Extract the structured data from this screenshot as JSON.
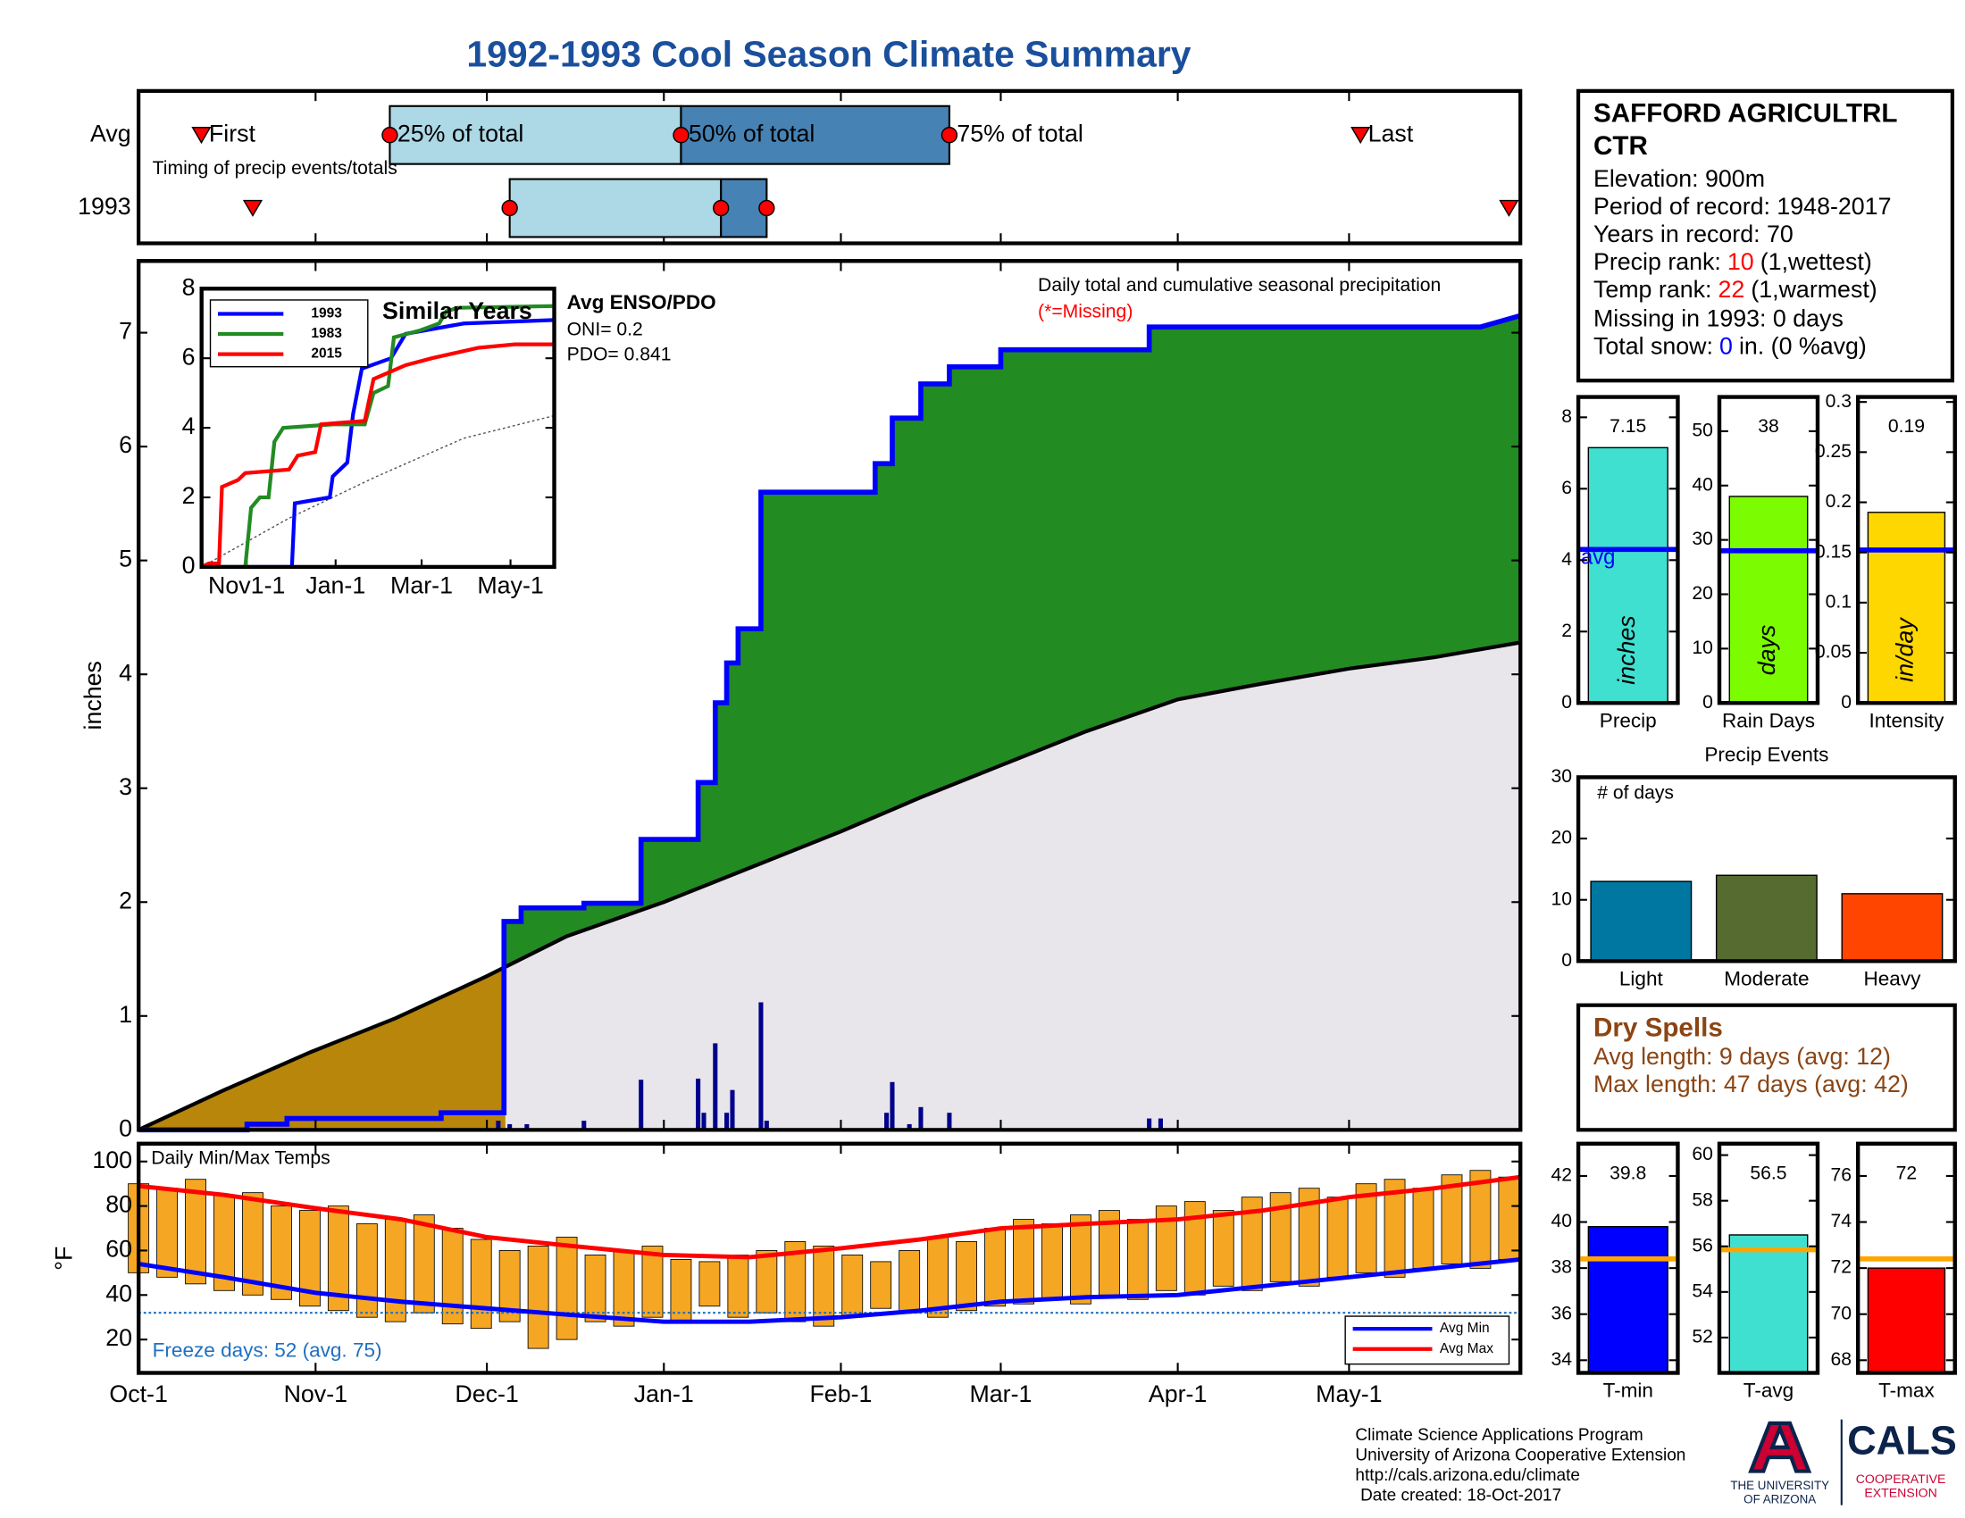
{
  "title": "1992-1993 Cool Season Climate Summary",
  "chart_data": [
    {
      "type": "timeline",
      "annotation": "Timing of precip events/totals",
      "markers": [
        "First",
        "25% of total",
        "50% of total",
        "75% of total",
        "Last"
      ],
      "series": [
        {
          "name": "Avg",
          "values": [
            11,
            44,
            95,
            142,
            214
          ]
        },
        {
          "name": "1993",
          "values": [
            20,
            65,
            102,
            110,
            240
          ]
        }
      ],
      "colors": [
        "#add8e6",
        "#4682b4"
      ],
      "marker_color": "#ff0000",
      "xlim": [
        0,
        242
      ]
    },
    {
      "type": "cumulative",
      "title": "Daily total and cumulative seasonal precipitation",
      "note": "(*=Missing)",
      "ylabel": "inches",
      "enso": {
        "title": "Avg ENSO/PDO",
        "oni": "ONI= 0.2",
        "pdo": "PDO= 0.841"
      },
      "xlim": [
        0,
        242
      ],
      "ylim": [
        0,
        7.63
      ],
      "yticks": [
        0,
        1,
        2,
        3,
        4,
        5,
        6,
        7
      ],
      "series": [
        {
          "color": "#0000ff",
          "x": [
            0,
            19,
            19,
            26,
            26,
            53,
            53,
            64,
            64,
            67,
            67,
            78,
            78,
            88,
            88,
            98,
            98,
            101,
            101,
            103,
            103,
            105,
            105,
            109,
            109,
            129,
            129,
            132,
            132,
            137,
            137,
            142,
            142,
            151,
            151,
            177,
            177,
            235,
            242
          ],
          "values": [
            0,
            0,
            0.05,
            0.05,
            0.1,
            0.1,
            0.15,
            0.15,
            1.83,
            1.83,
            1.95,
            1.95,
            1.99,
            1.99,
            2.55,
            2.55,
            3.05,
            3.05,
            3.75,
            3.75,
            4.1,
            4.1,
            4.4,
            4.4,
            5.6,
            5.6,
            5.85,
            5.85,
            6.25,
            6.25,
            6.55,
            6.55,
            6.7,
            6.7,
            6.85,
            6.85,
            7.05,
            7.05,
            7.15
          ]
        },
        {
          "color": "#000000",
          "x": [
            0,
            15,
            30,
            45,
            61,
            75,
            92,
            107,
            123,
            137,
            151,
            166,
            182,
            197,
            212,
            227,
            242
          ],
          "values": [
            0,
            0.35,
            0.68,
            0.98,
            1.35,
            1.7,
            2.0,
            2.3,
            2.62,
            2.92,
            3.2,
            3.5,
            3.78,
            3.92,
            4.05,
            4.15,
            4.28
          ]
        }
      ],
      "daily": {
        "color": "#00008b",
        "x": [
          63,
          65,
          68,
          78,
          88,
          98,
          99,
          101,
          103,
          104,
          109,
          110,
          131,
          132,
          135,
          137,
          142,
          177,
          179
        ],
        "values": [
          0.08,
          0.05,
          0.05,
          0.08,
          0.44,
          0.45,
          0.15,
          0.76,
          0.15,
          0.35,
          1.12,
          0.08,
          0.15,
          0.42,
          0.05,
          0.2,
          0.15,
          0.1,
          0.1
        ]
      },
      "fill_above": "#228b22",
      "fill_below": "#b8860b",
      "fill_base": "#e8e6ea"
    },
    {
      "type": "line",
      "title": "Similar Years",
      "xlim": [
        0,
        242
      ],
      "xticks": [
        {
          "value": 31,
          "label": "Nov1-1"
        },
        {
          "value": 92,
          "label": "Jan-1"
        },
        {
          "value": 151,
          "label": "Mar-1"
        },
        {
          "value": 212,
          "label": "May-1"
        }
      ],
      "ylim": [
        0,
        8
      ],
      "yticks": [
        0,
        2,
        4,
        6,
        8
      ],
      "legend": "top-left",
      "series": [
        {
          "name": "1993",
          "color": "#0000ff",
          "x": [
            0,
            62,
            64,
            88,
            90,
            100,
            104,
            110,
            130,
            140,
            180,
            242
          ],
          "values": [
            0,
            0,
            1.83,
            2.0,
            2.6,
            3.0,
            4.4,
            5.7,
            6.0,
            6.7,
            7.0,
            7.1
          ]
        },
        {
          "name": "1983",
          "color": "#228b22",
          "x": [
            0,
            30,
            34,
            40,
            46,
            50,
            56,
            90,
            112,
            118,
            128,
            132,
            150,
            163,
            168,
            176,
            242
          ],
          "values": [
            0,
            0,
            1.7,
            2.0,
            2.0,
            3.6,
            4.0,
            4.1,
            4.1,
            5.0,
            5.2,
            6.6,
            6.8,
            7.0,
            7.35,
            7.45,
            7.5
          ]
        },
        {
          "name": "2015",
          "color": "#ff0000",
          "x": [
            0,
            5,
            12,
            14,
            25,
            30,
            60,
            66,
            78,
            82,
            112,
            118,
            140,
            158,
            190,
            215,
            242
          ],
          "values": [
            0,
            0.1,
            0.1,
            2.3,
            2.5,
            2.7,
            2.8,
            3.2,
            3.3,
            4.1,
            4.2,
            5.4,
            5.8,
            6.0,
            6.3,
            6.4,
            6.4
          ]
        }
      ],
      "avg": {
        "color": "#555555",
        "x": [
          0,
          60,
          120,
          180,
          242
        ],
        "values": [
          0,
          1.4,
          2.6,
          3.7,
          4.35
        ]
      }
    },
    {
      "type": "range_bar",
      "title": "Daily Min/Max Temps",
      "ylabel": "°F",
      "annotation": "Freeze days: 52 (avg. 75)",
      "xlim": [
        0,
        242
      ],
      "xticks": [
        {
          "value": 0,
          "label": "Oct-1"
        },
        {
          "value": 31,
          "label": "Nov-1"
        },
        {
          "value": 61,
          "label": "Dec-1"
        },
        {
          "value": 92,
          "label": "Jan-1"
        },
        {
          "value": 123,
          "label": "Feb-1"
        },
        {
          "value": 151,
          "label": "Mar-1"
        },
        {
          "value": 182,
          "label": "Apr-1"
        },
        {
          "value": 212,
          "label": "May-1"
        }
      ],
      "ylim": [
        5,
        108
      ],
      "yticks": [
        20,
        40,
        60,
        80,
        100
      ],
      "color": "#f5a623",
      "freeze_line": 32,
      "freeze_color": "#1f6fbf",
      "x": [
        0,
        5,
        10,
        15,
        20,
        25,
        30,
        35,
        40,
        45,
        50,
        55,
        60,
        65,
        70,
        75,
        80,
        85,
        90,
        95,
        100,
        105,
        110,
        115,
        120,
        125,
        130,
        135,
        140,
        145,
        150,
        155,
        160,
        165,
        170,
        175,
        180,
        185,
        190,
        195,
        200,
        205,
        210,
        215,
        220,
        225,
        230,
        235,
        240
      ],
      "min": [
        50,
        48,
        45,
        42,
        40,
        38,
        35,
        33,
        30,
        28,
        32,
        27,
        25,
        28,
        16,
        20,
        28,
        26,
        30,
        28,
        35,
        30,
        32,
        28,
        26,
        30,
        34,
        32,
        30,
        33,
        35,
        36,
        38,
        36,
        40,
        38,
        42,
        40,
        44,
        42,
        46,
        44,
        48,
        50,
        48,
        52,
        54,
        52,
        56
      ],
      "max": [
        90,
        88,
        92,
        85,
        86,
        80,
        78,
        80,
        72,
        74,
        76,
        70,
        65,
        60,
        62,
        66,
        58,
        60,
        62,
        56,
        55,
        58,
        60,
        64,
        62,
        58,
        55,
        60,
        66,
        64,
        70,
        74,
        72,
        76,
        78,
        74,
        80,
        82,
        78,
        84,
        86,
        88,
        84,
        90,
        92,
        88,
        94,
        96,
        93
      ],
      "series": [
        {
          "name": "Avg Min",
          "color": "#0000ff",
          "x": [
            0,
            15,
            31,
            46,
            61,
            76,
            92,
            107,
            123,
            137,
            151,
            166,
            182,
            197,
            212,
            227,
            242
          ],
          "values": [
            54,
            48,
            41,
            37,
            34,
            31,
            28,
            28,
            30,
            33,
            37,
            39,
            40,
            44,
            48,
            52,
            56
          ]
        },
        {
          "name": "Avg Max",
          "color": "#ff0000",
          "x": [
            0,
            15,
            31,
            46,
            61,
            76,
            92,
            107,
            123,
            137,
            151,
            166,
            182,
            197,
            212,
            227,
            242
          ],
          "values": [
            89,
            85,
            79,
            74,
            66,
            62,
            58,
            57,
            61,
            65,
            70,
            72,
            74,
            78,
            84,
            88,
            93
          ]
        }
      ]
    },
    {
      "type": "bar",
      "categories": [
        "Precip"
      ],
      "values": [
        7.15
      ],
      "avg": 4.3,
      "avg_label": "avg",
      "avg_color": "#0000ff",
      "unit_label": "inches",
      "color": "#40e0d0",
      "ylim": [
        0,
        8.57
      ],
      "yticks": [
        0,
        2,
        4,
        6,
        8
      ]
    },
    {
      "type": "bar",
      "categories": [
        "Rain Days"
      ],
      "values": [
        38
      ],
      "avg": 28,
      "avg_color": "#0000ff",
      "unit_label": "days",
      "color": "#7cfc00",
      "ylim": [
        0,
        56.3
      ],
      "yticks": [
        0,
        10,
        20,
        30,
        40,
        50
      ]
    },
    {
      "type": "bar",
      "categories": [
        "Intensity"
      ],
      "values": [
        0.19
      ],
      "avg": 0.1525,
      "avg_color": "#0000ff",
      "unit_label": "in/day",
      "color": "#ffd700",
      "ylim": [
        0,
        0.305
      ],
      "yticks": [
        0,
        0.05,
        0.1,
        0.15,
        0.2,
        0.25,
        0.3
      ]
    },
    {
      "type": "bar",
      "title": "Precip Events",
      "ylabel": "# of days",
      "categories": [
        "Light",
        "Moderate",
        "Heavy"
      ],
      "values": [
        13,
        14,
        11
      ],
      "colors": [
        "#0077a0",
        "#556b2f",
        "#ff4500"
      ],
      "ylim": [
        0,
        30
      ],
      "yticks": [
        0,
        10,
        20,
        30
      ]
    },
    {
      "type": "bar",
      "categories": [
        "T-min"
      ],
      "values": [
        39.8
      ],
      "avg": 38.4,
      "avg_color": "#ffa500",
      "color": "#0000ff",
      "ylim": [
        33.45,
        43.4
      ],
      "yticks": [
        34,
        36,
        38,
        40,
        42
      ]
    },
    {
      "type": "bar",
      "categories": [
        "T-avg"
      ],
      "values": [
        56.5
      ],
      "avg": 55.85,
      "avg_color": "#ffa500",
      "color": "#40e0d0",
      "ylim": [
        50.45,
        60.5
      ],
      "yticks": [
        52,
        54,
        56,
        58,
        60
      ]
    },
    {
      "type": "bar",
      "categories": [
        "T-max"
      ],
      "values": [
        72
      ],
      "avg": 72.4,
      "avg_color": "#ffa500",
      "color": "#ff0000",
      "ylim": [
        67.45,
        77.4
      ],
      "yticks": [
        68,
        70,
        72,
        74,
        76
      ]
    }
  ],
  "station": {
    "name": [
      "SAFFORD AGRICULTRL",
      "CTR"
    ],
    "elevation": "Elevation: 900m",
    "period": "Period of record: 1948-2017",
    "years": "Years in record: 70",
    "precip_rank": {
      "label": "Precip rank:",
      "value": 10,
      "note": "(1,wettest)"
    },
    "temp_rank": {
      "label": "Temp rank:",
      "value": 22,
      "note": "(1,warmest)"
    },
    "missing": "Missing in 1993: 0 days",
    "snow": {
      "label": "Total snow:",
      "value": 0,
      "note": "in. (0 %avg)"
    }
  },
  "dry_spells": {
    "title": "Dry Spells",
    "avg": "Avg length: 9 days (avg: 12)",
    "max": "Max length: 47 days (avg: 42)"
  },
  "footer": {
    "lines": [
      "Climate Science Applications Program",
      "University of Arizona Cooperative Extension",
      "http://cals.arizona.edu/climate",
      "Date created: 18-Oct-2017"
    ],
    "ua": [
      "THE UNIVERSITY",
      "OF ARIZONA"
    ],
    "cals": "CALS",
    "extension": [
      "COOPERATIVE",
      "EXTENSION"
    ]
  }
}
